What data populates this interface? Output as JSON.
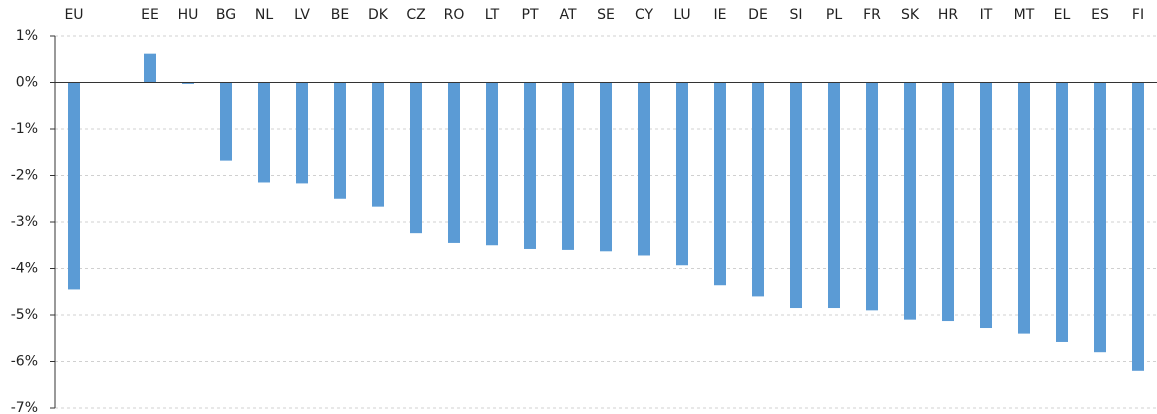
{
  "chart_data": {
    "type": "bar",
    "categories": [
      "EU",
      null,
      "EE",
      "HU",
      "BG",
      "NL",
      "LV",
      "BE",
      "DK",
      "CZ",
      "RO",
      "LT",
      "PT",
      "AT",
      "SE",
      "CY",
      "LU",
      "IE",
      "DE",
      "SI",
      "PL",
      "FR",
      "SK",
      "HR",
      "IT",
      "MT",
      "EL",
      "ES",
      "FI"
    ],
    "values": [
      -4.45,
      null,
      0.62,
      -0.03,
      -1.68,
      -2.15,
      -2.17,
      -2.5,
      -2.67,
      -3.24,
      -3.45,
      -3.5,
      -3.58,
      -3.6,
      -3.63,
      -3.72,
      -3.93,
      -4.36,
      -4.6,
      -4.85,
      -4.85,
      -4.9,
      -5.1,
      -5.13,
      -5.28,
      -5.4,
      -5.58,
      -5.8,
      -6.2
    ],
    "color": "#5b9bd5",
    "ylim": [
      -7,
      1
    ],
    "yticks": [
      {
        "value": 1,
        "label": "1%"
      },
      {
        "value": 0,
        "label": "0%"
      },
      {
        "value": -1,
        "label": "-1%"
      },
      {
        "value": -2,
        "label": "-2%"
      },
      {
        "value": -3,
        "label": "-3%"
      },
      {
        "value": -4,
        "label": "-4%"
      },
      {
        "value": -5,
        "label": "-5%"
      },
      {
        "value": -6,
        "label": "-6%"
      },
      {
        "value": -7,
        "label": "-7%"
      }
    ],
    "grid": true
  }
}
